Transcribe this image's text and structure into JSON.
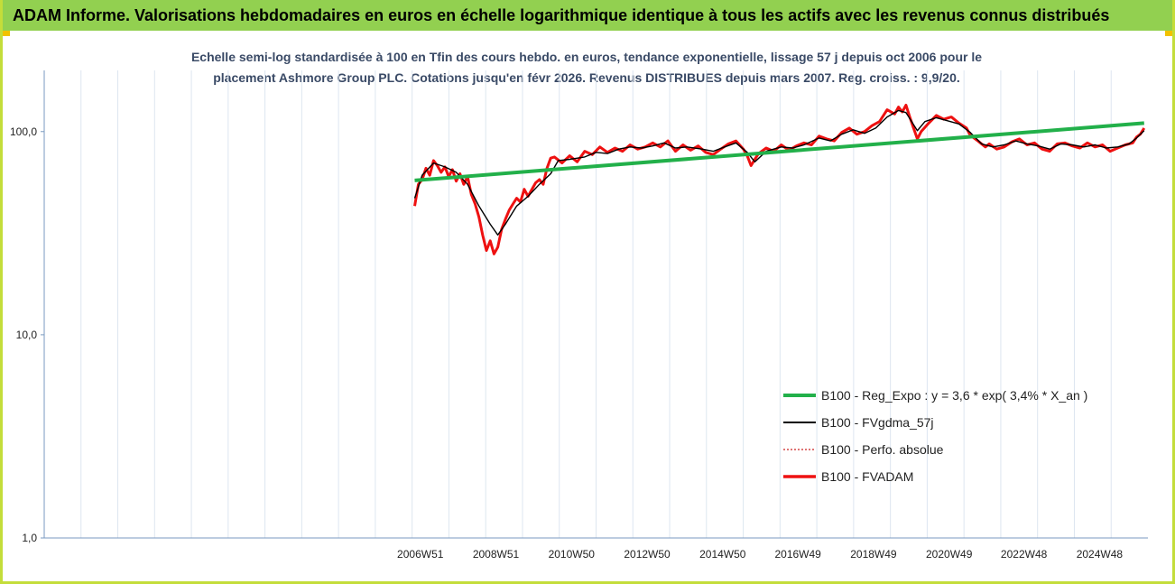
{
  "header": {
    "title": "ADAM Informe. Valorisations hebdomadaires en euros en échelle logarithmique identique à tous les actifs avec les revenus connus distribués"
  },
  "colors": {
    "banner": "#92d050",
    "trend": "#22b04a",
    "fvadam": "#ee1111",
    "fvgdma": "#000000",
    "perfo": "#cc2222"
  },
  "chart_data": {
    "type": "line",
    "title": "Echelle semi-log standardisée à 100 en Tfin des cours hebdo. en euros, tendance exponentielle, lissage 57 j depuis oct 2006 pour le placement Ashmore Group PLC. Cotations jusqu'en févr 2026. Revenus DISTRIBUES depuis mars 2007. Reg. croiss. : 9,9/20.",
    "title_lines": [
      "Echelle semi-log standardisée à 100 en Tfin des cours hebdo. en euros, tendance exponentielle, lissage 57 j depuis oct 2006 pour le",
      "placement Ashmore Group PLC. Cotations jusqu'en févr 2026. Revenus DISTRIBUES depuis mars 2007. Reg. croiss. : 9,9/20."
    ],
    "y_scale": "log",
    "ylim": [
      1,
      200
    ],
    "y_ticks": [
      {
        "value": 1,
        "label": "1,0"
      },
      {
        "value": 10,
        "label": "10,0"
      },
      {
        "value": 100,
        "label": "100,0"
      }
    ],
    "x_range": [
      1997.0,
      2026.2
    ],
    "x_ticks": [
      {
        "value": 2006.95,
        "label": "2006W51"
      },
      {
        "value": 2008.95,
        "label": "2008W51"
      },
      {
        "value": 2010.95,
        "label": "2010W50"
      },
      {
        "value": 2012.95,
        "label": "2012W50"
      },
      {
        "value": 2014.95,
        "label": "2014W50"
      },
      {
        "value": 2016.94,
        "label": "2016W49"
      },
      {
        "value": 2018.94,
        "label": "2018W49"
      },
      {
        "value": 2020.94,
        "label": "2020W49"
      },
      {
        "value": 2022.92,
        "label": "2022W48"
      },
      {
        "value": 2024.92,
        "label": "2024W48"
      }
    ],
    "vertical_gridlines": 30,
    "grid": true,
    "legend_position": "bottom-right",
    "series": [
      {
        "name": "B100 - Reg_Expo : y = 3,6 * exp( 3,4% *  X_an )",
        "style": "solid-thick",
        "points": [
          [
            2006.8,
            57.5
          ],
          [
            2026.1,
            110
          ]
        ]
      },
      {
        "name": "B100 - FVgdma_57j",
        "style": "solid-thin",
        "points": [
          [
            2006.8,
            47
          ],
          [
            2007.0,
            61
          ],
          [
            2007.3,
            70
          ],
          [
            2007.6,
            67
          ],
          [
            2007.9,
            63
          ],
          [
            2008.2,
            55
          ],
          [
            2008.5,
            43
          ],
          [
            2008.8,
            35
          ],
          [
            2009.0,
            31
          ],
          [
            2009.2,
            35
          ],
          [
            2009.5,
            43
          ],
          [
            2009.8,
            48
          ],
          [
            2010.1,
            55
          ],
          [
            2010.4,
            62
          ],
          [
            2010.6,
            72
          ],
          [
            2010.9,
            73
          ],
          [
            2011.3,
            75
          ],
          [
            2011.6,
            79
          ],
          [
            2011.9,
            78
          ],
          [
            2012.2,
            82
          ],
          [
            2012.5,
            84
          ],
          [
            2012.8,
            83
          ],
          [
            2013.1,
            85
          ],
          [
            2013.4,
            88
          ],
          [
            2013.7,
            83
          ],
          [
            2014.0,
            84
          ],
          [
            2014.4,
            82
          ],
          [
            2014.7,
            80
          ],
          [
            2015.0,
            84
          ],
          [
            2015.3,
            88
          ],
          [
            2015.6,
            79
          ],
          [
            2015.8,
            71
          ],
          [
            2016.1,
            80
          ],
          [
            2016.5,
            84
          ],
          [
            2016.8,
            83
          ],
          [
            2017.1,
            86
          ],
          [
            2017.5,
            93
          ],
          [
            2017.8,
            90
          ],
          [
            2018.1,
            97
          ],
          [
            2018.4,
            102
          ],
          [
            2018.7,
            98
          ],
          [
            2019.0,
            104
          ],
          [
            2019.3,
            118
          ],
          [
            2019.6,
            127
          ],
          [
            2019.8,
            124
          ],
          [
            2020.1,
            101
          ],
          [
            2020.3,
            112
          ],
          [
            2020.6,
            117
          ],
          [
            2020.9,
            113
          ],
          [
            2021.2,
            109
          ],
          [
            2021.5,
            99
          ],
          [
            2021.8,
            87
          ],
          [
            2022.1,
            84
          ],
          [
            2022.4,
            86
          ],
          [
            2022.7,
            90
          ],
          [
            2023.0,
            87
          ],
          [
            2023.3,
            85
          ],
          [
            2023.6,
            82
          ],
          [
            2023.9,
            87
          ],
          [
            2024.2,
            86
          ],
          [
            2024.5,
            84
          ],
          [
            2024.8,
            86
          ],
          [
            2025.1,
            83
          ],
          [
            2025.4,
            84
          ],
          [
            2025.7,
            87
          ],
          [
            2025.9,
            93
          ],
          [
            2026.1,
            101
          ]
        ]
      },
      {
        "name": "B100 - Perfo. absolue",
        "style": "dotted",
        "points": []
      },
      {
        "name": "B100 - FVADAM",
        "style": "solid-thick",
        "points": [
          [
            2006.8,
            43
          ],
          [
            2006.9,
            55
          ],
          [
            2007.0,
            58
          ],
          [
            2007.1,
            66
          ],
          [
            2007.2,
            61
          ],
          [
            2007.3,
            72
          ],
          [
            2007.4,
            68
          ],
          [
            2007.5,
            63
          ],
          [
            2007.6,
            67
          ],
          [
            2007.7,
            60
          ],
          [
            2007.8,
            65
          ],
          [
            2007.9,
            57
          ],
          [
            2008.0,
            62
          ],
          [
            2008.1,
            55
          ],
          [
            2008.2,
            60
          ],
          [
            2008.3,
            49
          ],
          [
            2008.4,
            44
          ],
          [
            2008.5,
            38
          ],
          [
            2008.6,
            31
          ],
          [
            2008.7,
            26
          ],
          [
            2008.8,
            29
          ],
          [
            2008.9,
            25
          ],
          [
            2009.0,
            27
          ],
          [
            2009.1,
            33
          ],
          [
            2009.2,
            37
          ],
          [
            2009.3,
            41
          ],
          [
            2009.4,
            44
          ],
          [
            2009.5,
            47
          ],
          [
            2009.6,
            45
          ],
          [
            2009.7,
            52
          ],
          [
            2009.8,
            48
          ],
          [
            2010.0,
            56
          ],
          [
            2010.1,
            58
          ],
          [
            2010.2,
            55
          ],
          [
            2010.3,
            66
          ],
          [
            2010.4,
            74
          ],
          [
            2010.5,
            75
          ],
          [
            2010.7,
            70
          ],
          [
            2010.9,
            76
          ],
          [
            2011.1,
            71
          ],
          [
            2011.3,
            80
          ],
          [
            2011.5,
            77
          ],
          [
            2011.7,
            84
          ],
          [
            2011.9,
            79
          ],
          [
            2012.1,
            83
          ],
          [
            2012.3,
            80
          ],
          [
            2012.5,
            86
          ],
          [
            2012.7,
            82
          ],
          [
            2012.9,
            84
          ],
          [
            2013.1,
            88
          ],
          [
            2013.3,
            84
          ],
          [
            2013.5,
            90
          ],
          [
            2013.7,
            80
          ],
          [
            2013.9,
            86
          ],
          [
            2014.1,
            81
          ],
          [
            2014.3,
            85
          ],
          [
            2014.5,
            79
          ],
          [
            2014.7,
            77
          ],
          [
            2014.9,
            82
          ],
          [
            2015.1,
            87
          ],
          [
            2015.3,
            90
          ],
          [
            2015.5,
            82
          ],
          [
            2015.6,
            76
          ],
          [
            2015.7,
            68
          ],
          [
            2015.8,
            73
          ],
          [
            2015.9,
            78
          ],
          [
            2016.1,
            83
          ],
          [
            2016.3,
            80
          ],
          [
            2016.5,
            86
          ],
          [
            2016.7,
            81
          ],
          [
            2016.9,
            85
          ],
          [
            2017.1,
            88
          ],
          [
            2017.3,
            86
          ],
          [
            2017.5,
            95
          ],
          [
            2017.7,
            92
          ],
          [
            2017.9,
            90
          ],
          [
            2018.1,
            99
          ],
          [
            2018.3,
            104
          ],
          [
            2018.5,
            97
          ],
          [
            2018.7,
            100
          ],
          [
            2018.9,
            107
          ],
          [
            2019.1,
            112
          ],
          [
            2019.3,
            128
          ],
          [
            2019.5,
            122
          ],
          [
            2019.6,
            132
          ],
          [
            2019.7,
            125
          ],
          [
            2019.8,
            135
          ],
          [
            2019.9,
            118
          ],
          [
            2020.0,
            104
          ],
          [
            2020.1,
            92
          ],
          [
            2020.2,
            100
          ],
          [
            2020.4,
            110
          ],
          [
            2020.6,
            120
          ],
          [
            2020.8,
            115
          ],
          [
            2021.0,
            118
          ],
          [
            2021.2,
            110
          ],
          [
            2021.4,
            104
          ],
          [
            2021.5,
            96
          ],
          [
            2021.7,
            90
          ],
          [
            2021.9,
            84
          ],
          [
            2022.0,
            87
          ],
          [
            2022.2,
            82
          ],
          [
            2022.4,
            84
          ],
          [
            2022.6,
            89
          ],
          [
            2022.8,
            92
          ],
          [
            2023.0,
            86
          ],
          [
            2023.2,
            88
          ],
          [
            2023.4,
            82
          ],
          [
            2023.6,
            80
          ],
          [
            2023.8,
            87
          ],
          [
            2024.0,
            88
          ],
          [
            2024.2,
            85
          ],
          [
            2024.4,
            83
          ],
          [
            2024.6,
            88
          ],
          [
            2024.8,
            84
          ],
          [
            2025.0,
            86
          ],
          [
            2025.2,
            80
          ],
          [
            2025.4,
            83
          ],
          [
            2025.6,
            86
          ],
          [
            2025.8,
            88
          ],
          [
            2025.9,
            94
          ],
          [
            2026.0,
            97
          ],
          [
            2026.1,
            104
          ]
        ]
      }
    ]
  }
}
